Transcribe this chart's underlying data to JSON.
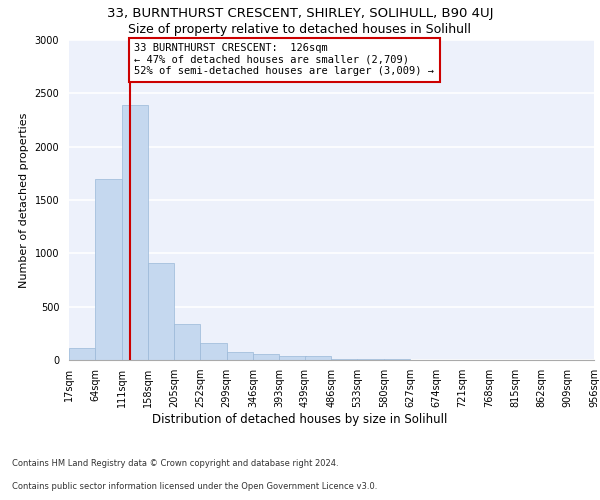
{
  "title1": "33, BURNTHURST CRESCENT, SHIRLEY, SOLIHULL, B90 4UJ",
  "title2": "Size of property relative to detached houses in Solihull",
  "xlabel": "Distribution of detached houses by size in Solihull",
  "ylabel": "Number of detached properties",
  "footer1": "Contains HM Land Registry data © Crown copyright and database right 2024.",
  "footer2": "Contains public sector information licensed under the Open Government Licence v3.0.",
  "bin_edges": [
    17,
    64,
    111,
    158,
    205,
    252,
    299,
    346,
    393,
    439,
    486,
    533,
    580,
    627,
    674,
    721,
    768,
    815,
    862,
    909,
    956
  ],
  "bar_heights": [
    110,
    1700,
    2390,
    910,
    340,
    155,
    75,
    55,
    35,
    35,
    10,
    5,
    5,
    3,
    2,
    2,
    1,
    1,
    1,
    1
  ],
  "bar_color": "#c5d8ef",
  "bar_edgecolor": "#9ab8d8",
  "property_size": 126,
  "red_line_color": "#cc0000",
  "annotation_text": "33 BURNTHURST CRESCENT:  126sqm\n← 47% of detached houses are smaller (2,709)\n52% of semi-detached houses are larger (3,009) →",
  "annotation_box_edgecolor": "#cc0000",
  "annotation_box_facecolor": "#ffffff",
  "ylim": [
    0,
    3000
  ],
  "background_color": "#edf1fb",
  "grid_color": "#ffffff",
  "title1_fontsize": 9.5,
  "title2_fontsize": 9,
  "xlabel_fontsize": 8.5,
  "ylabel_fontsize": 8,
  "tick_fontsize": 7,
  "annotation_fontsize": 7.5,
  "footer_fontsize": 6
}
